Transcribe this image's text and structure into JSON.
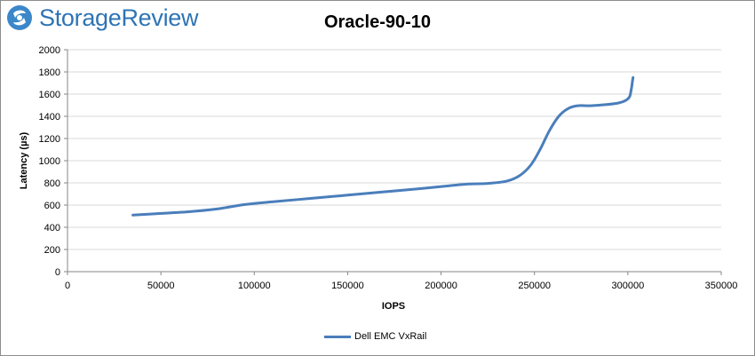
{
  "logo": {
    "text": "StorageReview",
    "icon": "storagereview-swirl-logo"
  },
  "chart_data": {
    "type": "line",
    "title": "Oracle-90-10",
    "xlabel": "IOPS",
    "ylabel": "Latency (µs)",
    "xlim": [
      0,
      350000
    ],
    "ylim": [
      0,
      2000
    ],
    "x_ticks": [
      0,
      50000,
      100000,
      150000,
      200000,
      250000,
      300000,
      350000
    ],
    "y_ticks": [
      0,
      200,
      400,
      600,
      800,
      1000,
      1200,
      1400,
      1600,
      1800,
      2000
    ],
    "grid": "horizontal",
    "legend_position": "bottom",
    "series": [
      {
        "name": "Dell EMC VxRail",
        "color": "#4a7ebb",
        "points": [
          [
            35000,
            510
          ],
          [
            50000,
            525
          ],
          [
            65000,
            540
          ],
          [
            80000,
            565
          ],
          [
            95000,
            605
          ],
          [
            110000,
            630
          ],
          [
            130000,
            660
          ],
          [
            150000,
            690
          ],
          [
            170000,
            720
          ],
          [
            190000,
            750
          ],
          [
            205000,
            775
          ],
          [
            215000,
            790
          ],
          [
            225000,
            795
          ],
          [
            235000,
            815
          ],
          [
            242000,
            865
          ],
          [
            248000,
            960
          ],
          [
            253000,
            1100
          ],
          [
            258000,
            1270
          ],
          [
            263000,
            1400
          ],
          [
            268000,
            1470
          ],
          [
            273000,
            1495
          ],
          [
            280000,
            1495
          ],
          [
            288000,
            1505
          ],
          [
            295000,
            1520
          ],
          [
            299000,
            1545
          ],
          [
            301000,
            1580
          ],
          [
            302000,
            1660
          ],
          [
            302500,
            1720
          ],
          [
            302800,
            1750
          ]
        ]
      }
    ]
  }
}
